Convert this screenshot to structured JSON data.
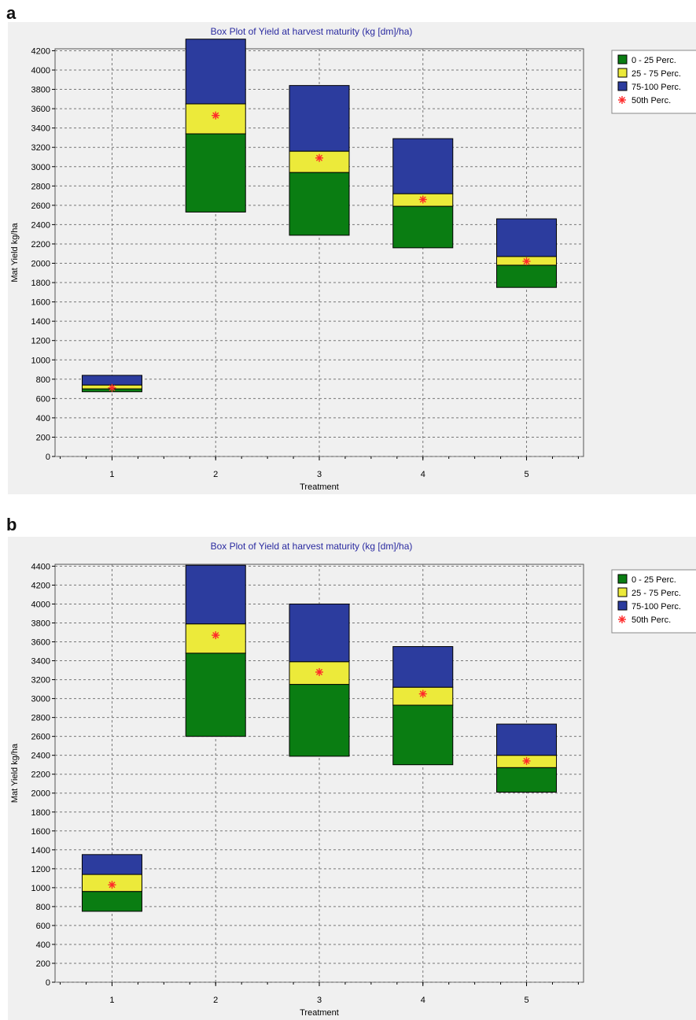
{
  "colors": {
    "q1": "#0a7d12",
    "q2": "#ecea3a",
    "q3": "#2c3c9e",
    "median": "#ff2a2a",
    "title": "#2a2aa0"
  },
  "legend": {
    "items": [
      "0 - 25 Perc.",
      "25 - 75 Perc.",
      "75-100 Perc.",
      "50th Perc."
    ]
  },
  "chart_data": [
    {
      "panel_label": "a",
      "type": "bar",
      "subtype": "stacked-percentile-box",
      "title": "Box Plot of Yield at harvest maturity (kg [dm]/ha)",
      "xlabel": "Treatment",
      "ylabel": "Mat Yield kg/ha",
      "ylim": [
        0,
        4200
      ],
      "yticks": [
        "0",
        "200",
        "400",
        "600",
        "800",
        "1000",
        "1200",
        "1400",
        "1600",
        "1800",
        "2000",
        "2200",
        "2400",
        "2600",
        "2800",
        "3000",
        "3200",
        "3400",
        "3600",
        "3800",
        "4000",
        "4200"
      ],
      "categories": [
        "1",
        "2",
        "3",
        "4",
        "5"
      ],
      "grid": true,
      "legend_position": "right",
      "boxes": [
        {
          "min": 670,
          "q25": 700,
          "q75": 740,
          "max": 840,
          "median": 710
        },
        {
          "min": 2530,
          "q25": 3340,
          "q75": 3650,
          "max": 4320,
          "median": 3530
        },
        {
          "min": 2290,
          "q25": 2940,
          "q75": 3160,
          "max": 3840,
          "median": 3090
        },
        {
          "min": 2160,
          "q25": 2590,
          "q75": 2720,
          "max": 3290,
          "median": 2660
        },
        {
          "min": 1750,
          "q25": 1980,
          "q75": 2070,
          "max": 2460,
          "median": 2020
        }
      ]
    },
    {
      "panel_label": "b",
      "type": "bar",
      "subtype": "stacked-percentile-box",
      "title": "Box Plot of Yield at harvest maturity (kg [dm]/ha)",
      "xlabel": "Treatment",
      "ylabel": "Mat Yield kg/ha",
      "ylim": [
        0,
        4400
      ],
      "yticks": [
        "0",
        "200",
        "400",
        "600",
        "800",
        "1000",
        "1200",
        "1400",
        "1600",
        "1800",
        "2000",
        "2200",
        "2400",
        "2600",
        "2800",
        "3000",
        "3200",
        "3400",
        "3600",
        "3800",
        "4000",
        "4200",
        "4400"
      ],
      "categories": [
        "1",
        "2",
        "3",
        "4",
        "5"
      ],
      "grid": true,
      "legend_position": "right",
      "boxes": [
        {
          "min": 750,
          "q25": 960,
          "q75": 1140,
          "max": 1350,
          "median": 1030
        },
        {
          "min": 2600,
          "q25": 3480,
          "q75": 3790,
          "max": 4410,
          "median": 3670
        },
        {
          "min": 2390,
          "q25": 3150,
          "q75": 3390,
          "max": 4000,
          "median": 3280
        },
        {
          "min": 2300,
          "q25": 2930,
          "q75": 3120,
          "max": 3550,
          "median": 3050
        },
        {
          "min": 2010,
          "q25": 2270,
          "q75": 2400,
          "max": 2730,
          "median": 2340
        }
      ]
    }
  ]
}
